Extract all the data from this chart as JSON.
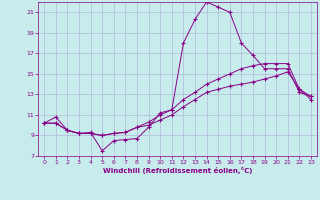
{
  "xlabel": "Windchill (Refroidissement éolien,°C)",
  "background_color": "#c8ecec",
  "grid_color": "#b0b8d8",
  "line_color": "#880088",
  "xlim": [
    -0.5,
    23.5
  ],
  "ylim": [
    7,
    22
  ],
  "xticks": [
    0,
    1,
    2,
    3,
    4,
    5,
    6,
    7,
    8,
    9,
    10,
    11,
    12,
    13,
    14,
    15,
    16,
    17,
    18,
    19,
    20,
    21,
    22,
    23
  ],
  "yticks": [
    7,
    9,
    11,
    13,
    15,
    17,
    19,
    21
  ],
  "series": [
    {
      "x": [
        0,
        1,
        2,
        3,
        4,
        5,
        6,
        7,
        8,
        9,
        10,
        11,
        12,
        13,
        14,
        15,
        16,
        17,
        18,
        19,
        20,
        21,
        22,
        23
      ],
      "y": [
        10.2,
        10.8,
        9.5,
        9.2,
        9.3,
        7.5,
        8.5,
        8.6,
        8.7,
        9.8,
        11.2,
        11.5,
        18.0,
        20.3,
        22.0,
        21.5,
        21.0,
        18.0,
        16.8,
        15.5,
        15.5,
        15.5,
        13.2,
        12.8
      ]
    },
    {
      "x": [
        0,
        1,
        2,
        3,
        4,
        5,
        6,
        7,
        8,
        9,
        10,
        11,
        12,
        13,
        14,
        15,
        16,
        17,
        18,
        19,
        20,
        21,
        22,
        23
      ],
      "y": [
        10.2,
        10.2,
        9.5,
        9.2,
        9.2,
        9.0,
        9.2,
        9.3,
        9.8,
        10.3,
        11.0,
        11.5,
        12.5,
        13.2,
        14.0,
        14.5,
        15.0,
        15.5,
        15.8,
        16.0,
        16.0,
        16.0,
        13.5,
        12.8
      ]
    },
    {
      "x": [
        0,
        1,
        2,
        3,
        4,
        5,
        6,
        7,
        8,
        9,
        10,
        11,
        12,
        13,
        14,
        15,
        16,
        17,
        18,
        19,
        20,
        21,
        22,
        23
      ],
      "y": [
        10.2,
        10.2,
        9.5,
        9.2,
        9.2,
        9.0,
        9.2,
        9.3,
        9.8,
        10.0,
        10.5,
        11.0,
        11.8,
        12.5,
        13.2,
        13.5,
        13.8,
        14.0,
        14.2,
        14.5,
        14.8,
        15.2,
        13.5,
        12.5
      ]
    }
  ]
}
